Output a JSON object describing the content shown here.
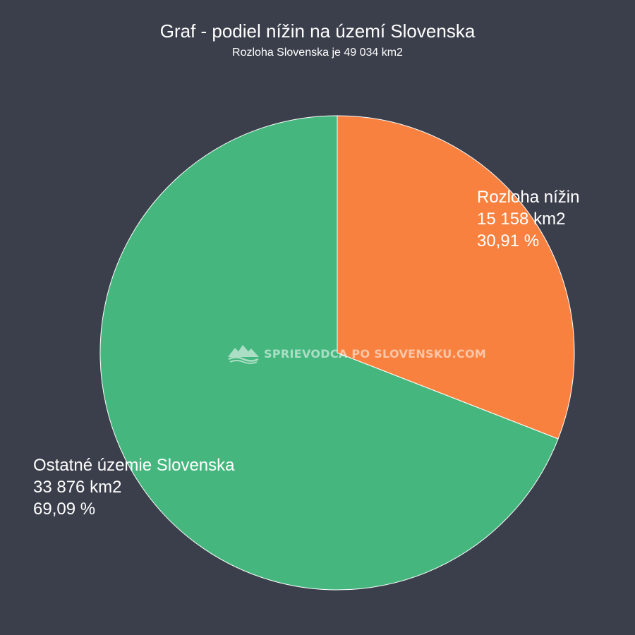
{
  "chart_data": {
    "type": "pie",
    "title": "Graf - podiel nížin na území Slovenska",
    "subtitle": "Rozloha Slovenska je 49 034 km2",
    "slices": [
      {
        "label": "Rozloha nížin",
        "value": 15158,
        "value_text": "15 158 km2",
        "percent": 30.91,
        "percent_text": "30,91 %",
        "color": "#f9813f"
      },
      {
        "label": "Ostatné územie Slovenska",
        "value": 33876,
        "value_text": "33 876 km2",
        "percent": 69.09,
        "percent_text": "69,09 %",
        "color": "#45b77e"
      }
    ],
    "start_angle": "12 o'clock",
    "direction": "clockwise"
  },
  "watermark": {
    "text": "SPRIEVODCA PO SLOVENSKU.COM",
    "icon": "mountain-logo-icon"
  },
  "colors": {
    "background": "#3b3f4b",
    "slice_border": "#ffffff"
  }
}
